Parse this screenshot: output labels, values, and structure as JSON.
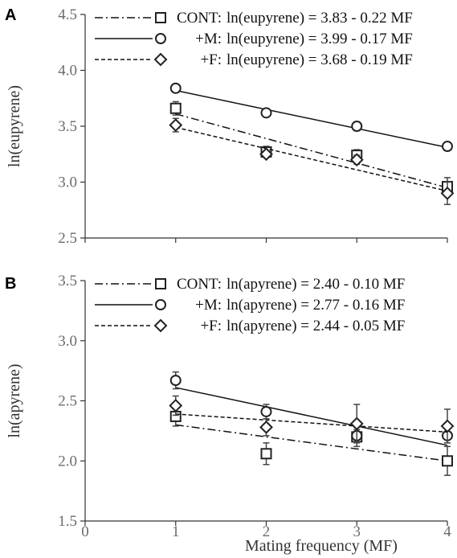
{
  "figure": {
    "xlabel": "Mating frequency (MF)",
    "xticks": [
      "0",
      "1",
      "2",
      "3",
      "4"
    ]
  },
  "chart_data": [
    {
      "type": "scatter",
      "panel": "A",
      "ylabel": "ln(eupyrene)",
      "xlim": [
        0,
        4
      ],
      "ylim": [
        2.5,
        4.5
      ],
      "yticks": [
        "2.5",
        "3.0",
        "3.5",
        "4.0",
        "4.5"
      ],
      "x": [
        1,
        2,
        3,
        4
      ],
      "series": [
        {
          "name": "CONT",
          "marker": "square",
          "line": "dashdot",
          "values": [
            3.66,
            3.27,
            3.24,
            2.96
          ],
          "err": [
            0.06,
            0.05,
            0.05,
            0.08
          ],
          "fit": {
            "intercept": 3.83,
            "slope": -0.22
          },
          "equation": "ln(eupyrene) = 3.83 - 0.22 MF"
        },
        {
          "name": "+M",
          "marker": "circle",
          "line": "solid",
          "values": [
            3.84,
            3.62,
            3.5,
            3.32
          ],
          "err": [
            0.02,
            0.02,
            0.04,
            0.03
          ],
          "fit": {
            "intercept": 3.99,
            "slope": -0.17
          },
          "equation": "ln(eupyrene) = 3.99 - 0.17 MF"
        },
        {
          "name": "+F",
          "marker": "diamond",
          "line": "dashed",
          "values": [
            3.51,
            3.25,
            3.2,
            2.9
          ],
          "err": [
            0.06,
            0.03,
            0.04,
            0.1
          ],
          "fit": {
            "intercept": 3.68,
            "slope": -0.19
          },
          "equation": "ln(eupyrene) = 3.68 - 0.19 MF"
        }
      ]
    },
    {
      "type": "scatter",
      "panel": "B",
      "ylabel": "ln(apyrene)",
      "xlim": [
        0,
        4
      ],
      "ylim": [
        1.5,
        3.5
      ],
      "yticks": [
        "1.5",
        "2.0",
        "2.5",
        "3.0",
        "3.5"
      ],
      "x": [
        1,
        2,
        3,
        4
      ],
      "series": [
        {
          "name": "CONT",
          "marker": "square",
          "line": "dashdot",
          "values": [
            2.37,
            2.06,
            2.2,
            2.0
          ],
          "err": [
            0.08,
            0.09,
            0.08,
            0.12
          ],
          "fit": {
            "intercept": 2.4,
            "slope": -0.1
          },
          "equation": "ln(apyrene) = 2.40 - 0.10 MF"
        },
        {
          "name": "+M",
          "marker": "circle",
          "line": "solid",
          "values": [
            2.67,
            2.41,
            2.21,
            2.21
          ],
          "err": [
            0.07,
            0.06,
            0.05,
            0.06
          ],
          "fit": {
            "intercept": 2.77,
            "slope": -0.16
          },
          "equation": "ln(apyrene) = 2.77 - 0.16 MF"
        },
        {
          "name": "+F",
          "marker": "diamond",
          "line": "dashed",
          "values": [
            2.46,
            2.28,
            2.31,
            2.29
          ],
          "err": [
            0.08,
            0.07,
            0.16,
            0.14
          ],
          "fit": {
            "intercept": 2.44,
            "slope": -0.05
          },
          "equation": "ln(apyrene) = 2.44 - 0.05 MF"
        }
      ]
    }
  ]
}
